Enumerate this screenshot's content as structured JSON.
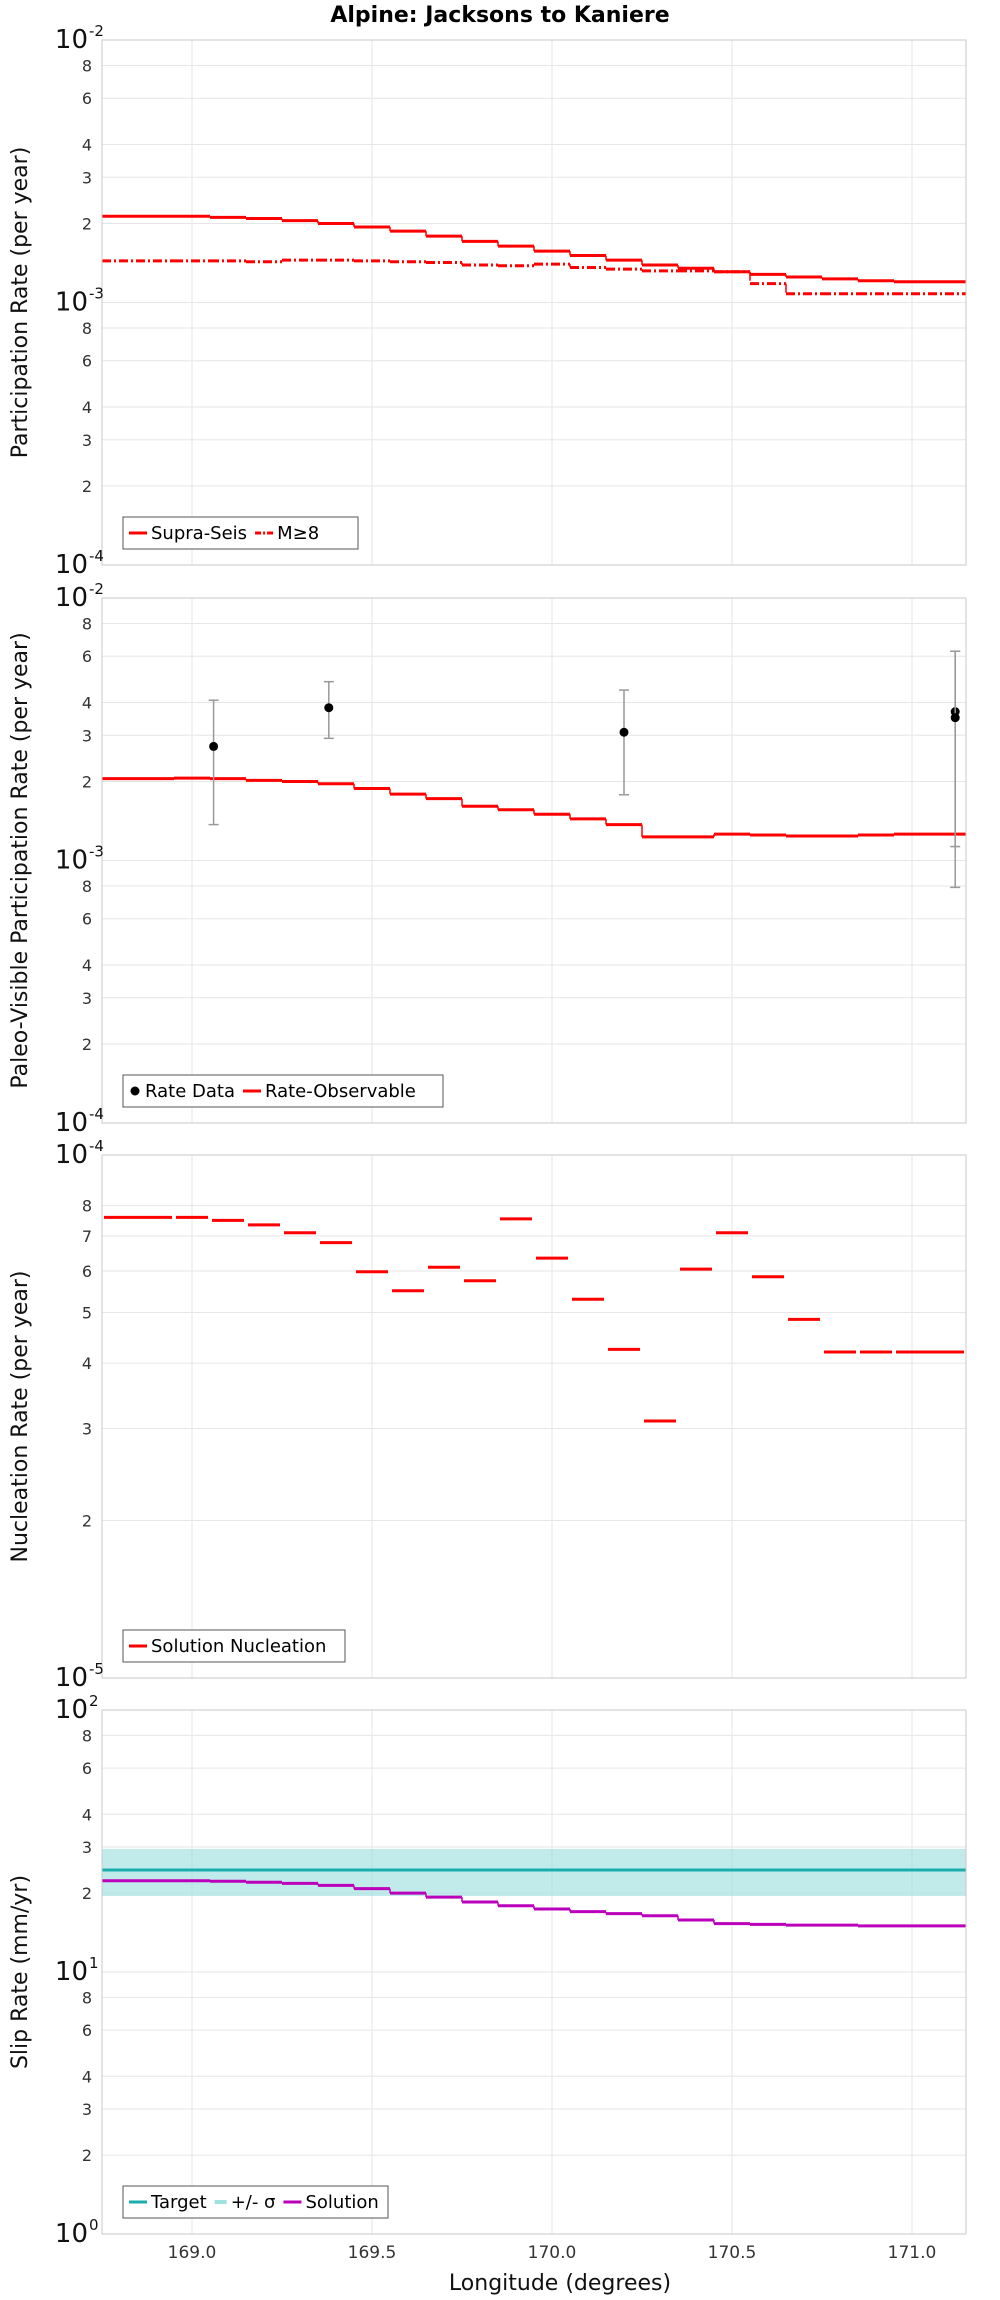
{
  "chart_data": {
    "title": "Alpine: Jacksons to Kaniere",
    "xlabel": "Longitude (degrees)",
    "xlim": [
      168.75,
      171.15
    ],
    "x_ticks": [
      169.0,
      169.5,
      170.0,
      170.5,
      171.0
    ],
    "x_tick_labels": [
      "169.0",
      "169.5",
      "170.0",
      "170.5",
      "171.0"
    ],
    "segment_edges": [
      168.75,
      168.95,
      169.05,
      169.15,
      169.25,
      169.35,
      169.45,
      169.55,
      169.65,
      169.75,
      169.85,
      169.95,
      170.05,
      170.15,
      170.25,
      170.35,
      170.45,
      170.55,
      170.65,
      170.75,
      170.85,
      170.95,
      171.15
    ],
    "panels": [
      {
        "type": "step-line",
        "ylabel": "Participation Rate (per year)",
        "yscale": "log",
        "ylim": [
          0.0001,
          0.01
        ],
        "y_major_ticks": [
          {
            "value": 0.0001,
            "base": "10",
            "exp": "-4"
          },
          {
            "value": 0.001,
            "base": "10",
            "exp": "-3"
          },
          {
            "value": 0.01,
            "base": "10",
            "exp": "-2"
          }
        ],
        "y_minor_ticks": [
          {
            "value": 0.0002,
            "label": "2"
          },
          {
            "value": 0.0003,
            "label": "3"
          },
          {
            "value": 0.0004,
            "label": "4"
          },
          {
            "value": 0.0006,
            "label": "6"
          },
          {
            "value": 0.0008,
            "label": "8"
          },
          {
            "value": 0.002,
            "label": "2"
          },
          {
            "value": 0.003,
            "label": "3"
          },
          {
            "value": 0.004,
            "label": "4"
          },
          {
            "value": 0.006,
            "label": "6"
          },
          {
            "value": 0.008,
            "label": "8"
          }
        ],
        "series": [
          {
            "name": "Supra-Seis",
            "color": "#ff0000",
            "dash": "solid",
            "values": [
              0.00213,
              0.00213,
              0.00211,
              0.00209,
              0.00205,
              0.002,
              0.00194,
              0.00187,
              0.00179,
              0.00171,
              0.00164,
              0.00157,
              0.00151,
              0.00145,
              0.00139,
              0.00135,
              0.00131,
              0.00128,
              0.00125,
              0.00123,
              0.00121,
              0.0012
            ]
          },
          {
            "name": "M≥8",
            "color": "#ff0000",
            "dash": "dashdot",
            "values": [
              0.00144,
              0.00144,
              0.00144,
              0.00143,
              0.00145,
              0.00145,
              0.00144,
              0.00143,
              0.00142,
              0.00139,
              0.00138,
              0.0014,
              0.00136,
              0.00134,
              0.00132,
              0.00132,
              0.00131,
              0.00118,
              0.00108,
              0.00108,
              0.00108,
              0.00108
            ]
          }
        ],
        "legend": {
          "position": "bottom-left",
          "entries": [
            "Supra-Seis",
            "M≥8"
          ]
        }
      },
      {
        "type": "step-line+errorbar",
        "ylabel": "Paleo-Visible Participation Rate (per year)",
        "yscale": "log",
        "ylim": [
          0.0001,
          0.01
        ],
        "y_major_ticks": [
          {
            "value": 0.0001,
            "base": "10",
            "exp": "-4"
          },
          {
            "value": 0.001,
            "base": "10",
            "exp": "-3"
          },
          {
            "value": 0.01,
            "base": "10",
            "exp": "-2"
          }
        ],
        "y_minor_ticks": [
          {
            "value": 0.0002,
            "label": "2"
          },
          {
            "value": 0.0003,
            "label": "3"
          },
          {
            "value": 0.0004,
            "label": "4"
          },
          {
            "value": 0.0006,
            "label": "6"
          },
          {
            "value": 0.0008,
            "label": "8"
          },
          {
            "value": 0.002,
            "label": "2"
          },
          {
            "value": 0.003,
            "label": "3"
          },
          {
            "value": 0.004,
            "label": "4"
          },
          {
            "value": 0.006,
            "label": "6"
          },
          {
            "value": 0.008,
            "label": "8"
          }
        ],
        "series": [
          {
            "name": "Rate-Observable",
            "color": "#ff0000",
            "dash": "solid",
            "values": [
              0.00205,
              0.00206,
              0.00205,
              0.00202,
              0.002,
              0.00196,
              0.00188,
              0.00179,
              0.00172,
              0.00161,
              0.00156,
              0.0015,
              0.00144,
              0.00137,
              0.00123,
              0.00123,
              0.00126,
              0.00125,
              0.00124,
              0.00124,
              0.00125,
              0.00126
            ]
          }
        ],
        "points": {
          "name": "Rate Data",
          "color": "#000000",
          "errorbar_color": "#999999",
          "data": [
            {
              "x": 169.06,
              "y": 0.00272,
              "lo": 0.00137,
              "hi": 0.00408
            },
            {
              "x": 169.38,
              "y": 0.00382,
              "lo": 0.00292,
              "hi": 0.0048
            },
            {
              "x": 170.2,
              "y": 0.00308,
              "lo": 0.00178,
              "hi": 0.00446
            },
            {
              "x": 171.12,
              "y": 0.00369,
              "lo": 0.00113,
              "hi": 0.00627
            },
            {
              "x": 171.12,
              "y": 0.0035,
              "lo": 0.00079,
              "hi": 0.00627
            }
          ]
        },
        "legend": {
          "position": "bottom-left",
          "entries": [
            "Rate Data",
            "Rate-Observable"
          ]
        }
      },
      {
        "type": "step-line",
        "ylabel": "Nucleation Rate (per year)",
        "yscale": "log",
        "ylim": [
          1e-05,
          0.0001
        ],
        "y_major_ticks": [
          {
            "value": 1e-05,
            "base": "10",
            "exp": "-5"
          },
          {
            "value": 0.0001,
            "base": "10",
            "exp": "-4"
          }
        ],
        "y_minor_ticks": [
          {
            "value": 2e-05,
            "label": "2"
          },
          {
            "value": 3e-05,
            "label": "3"
          },
          {
            "value": 4e-05,
            "label": "4"
          },
          {
            "value": 5e-05,
            "label": "5"
          },
          {
            "value": 6e-05,
            "label": "6"
          },
          {
            "value": 7e-05,
            "label": "7"
          },
          {
            "value": 8e-05,
            "label": "8"
          }
        ],
        "series": [
          {
            "name": "Solution Nucleation",
            "color": "#ff0000",
            "dash": "solid",
            "segmented": true,
            "values": [
              7.6e-05,
              7.6e-05,
              7.5e-05,
              7.35e-05,
              7.1e-05,
              6.8e-05,
              5.98e-05,
              5.5e-05,
              6.1e-05,
              5.75e-05,
              7.55e-05,
              6.35e-05,
              5.3e-05,
              4.25e-05,
              3.1e-05,
              6.05e-05,
              7.1e-05,
              5.85e-05,
              4.85e-05,
              4.2e-05,
              4.2e-05,
              4.2e-05
            ]
          }
        ],
        "legend": {
          "position": "bottom-left",
          "entries": [
            "Solution Nucleation"
          ]
        }
      },
      {
        "type": "step-line+band",
        "ylabel": "Slip Rate (mm/yr)",
        "yscale": "log",
        "ylim": [
          1,
          100
        ],
        "y_major_ticks": [
          {
            "value": 1,
            "base": "10",
            "exp": "0"
          },
          {
            "value": 10,
            "base": "10",
            "exp": "1"
          },
          {
            "value": 100,
            "base": "10",
            "exp": "2"
          }
        ],
        "y_minor_ticks": [
          {
            "value": 2,
            "label": "2"
          },
          {
            "value": 3,
            "label": "3"
          },
          {
            "value": 4,
            "label": "4"
          },
          {
            "value": 6,
            "label": "6"
          },
          {
            "value": 8,
            "label": "8"
          },
          {
            "value": 20,
            "label": "2"
          },
          {
            "value": 30,
            "label": "3"
          },
          {
            "value": 40,
            "label": "4"
          },
          {
            "value": 60,
            "label": "6"
          },
          {
            "value": 80,
            "label": "8"
          }
        ],
        "target": {
          "name": "Target",
          "value": 24.5,
          "color": "#1aadad"
        },
        "band": {
          "name": "+/- σ",
          "lo": 19.5,
          "hi": 29.5,
          "color": "#9fe0e0"
        },
        "series": [
          {
            "name": "Solution",
            "color": "#bb00bb",
            "dash": "solid",
            "values": [
              22.3,
              22.3,
              22.2,
              22.0,
              21.8,
              21.4,
              20.8,
              20.0,
              19.3,
              18.5,
              17.9,
              17.4,
              17.0,
              16.7,
              16.4,
              15.8,
              15.3,
              15.2,
              15.1,
              15.1,
              15.0,
              15.0
            ]
          }
        ],
        "legend": {
          "position": "bottom-left",
          "entries": [
            "Target",
            "+/- σ",
            "Solution"
          ]
        }
      }
    ]
  }
}
